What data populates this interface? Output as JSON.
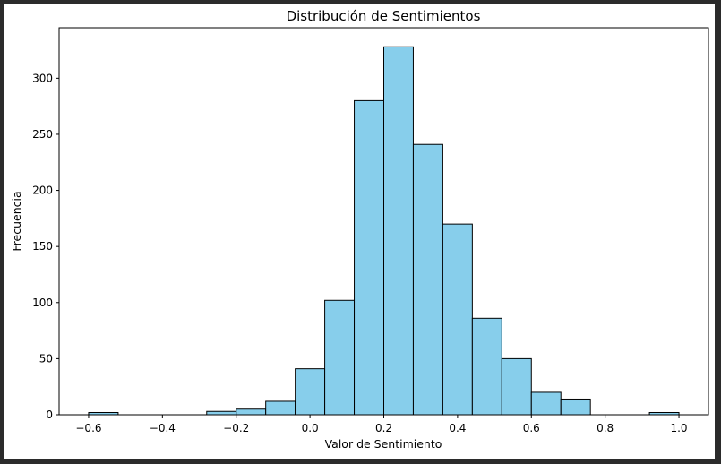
{
  "chart_data": {
    "type": "bar",
    "subtype": "histogram",
    "title": "Distribución de Sentimientos",
    "xlabel": "Valor de Sentimiento",
    "ylabel": "Frecuencia",
    "xlim": [
      -0.68,
      1.08
    ],
    "ylim": [
      0,
      345
    ],
    "xticks": [
      -0.6,
      -0.4,
      -0.2,
      0.0,
      0.2,
      0.4,
      0.6,
      0.8,
      1.0
    ],
    "xtick_labels": [
      "−0.6",
      "−0.4",
      "−0.2",
      "0.0",
      "0.2",
      "0.4",
      "0.6",
      "0.8",
      "1.0"
    ],
    "yticks": [
      0,
      50,
      100,
      150,
      200,
      250,
      300
    ],
    "ytick_labels": [
      "0",
      "50",
      "100",
      "150",
      "200",
      "250",
      "300"
    ],
    "bin_start": -0.6,
    "bin_width": 0.08,
    "values": [
      2,
      0,
      0,
      0,
      3,
      5,
      12,
      41,
      102,
      280,
      328,
      241,
      170,
      86,
      50,
      20,
      14,
      0,
      0,
      2
    ],
    "bar_color": "#87ceeb",
    "edge_color": "#000000",
    "grid": false
  }
}
